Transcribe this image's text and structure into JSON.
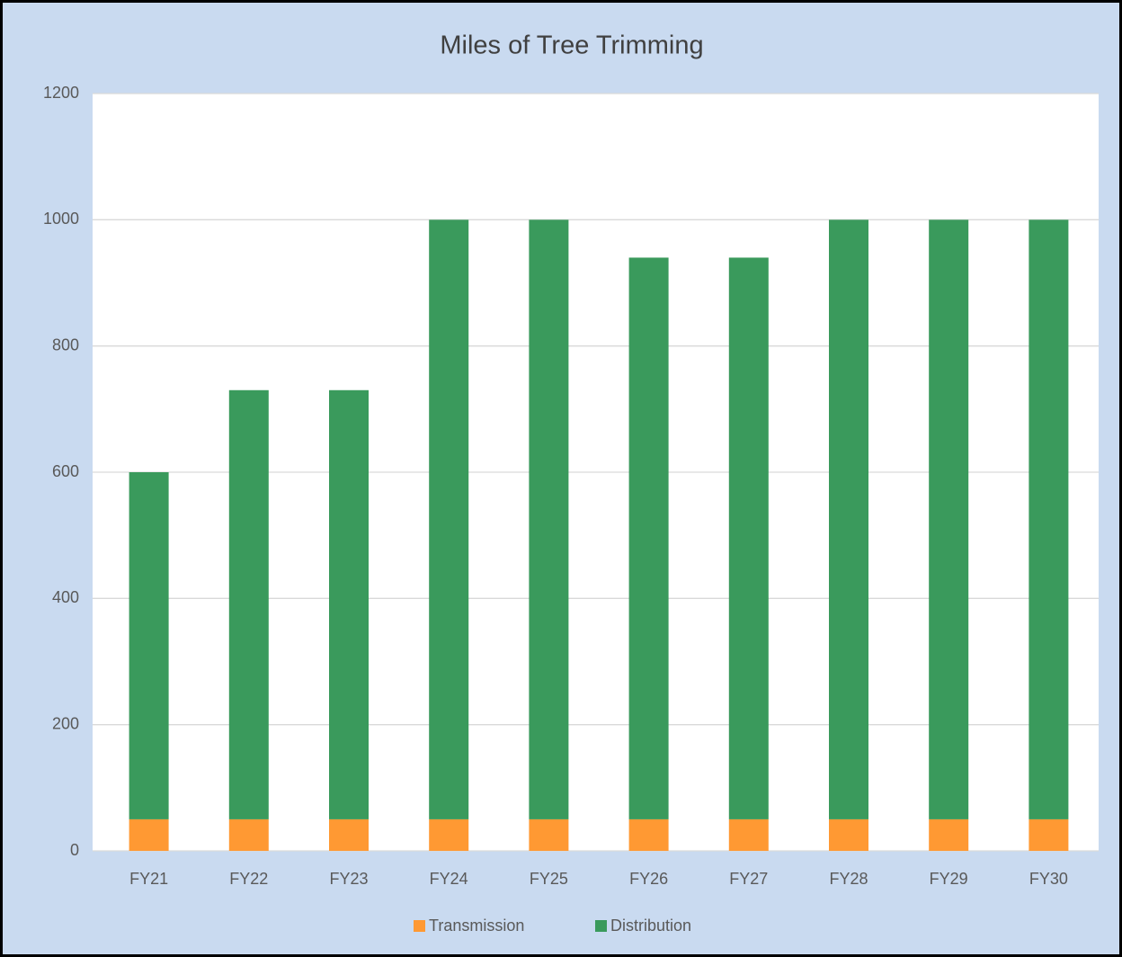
{
  "chart_data": {
    "type": "stacked_bar",
    "title": "Miles of Tree Trimming",
    "categories": [
      "FY21",
      "FY22",
      "FY23",
      "FY24",
      "FY25",
      "FY26",
      "FY27",
      "FY28",
      "FY29",
      "FY30"
    ],
    "series": [
      {
        "name": "Transmission",
        "color": "#ff9933",
        "values": [
          50,
          50,
          50,
          50,
          50,
          50,
          50,
          50,
          50,
          50
        ]
      },
      {
        "name": "Distribution",
        "color": "#3a9a5c",
        "values": [
          550,
          680,
          680,
          950,
          950,
          890,
          890,
          950,
          950,
          950
        ]
      }
    ],
    "ylim": [
      0,
      1200
    ],
    "yticks": [
      0,
      200,
      400,
      600,
      800,
      1000,
      1200
    ],
    "grid": true,
    "legend": "bottom"
  }
}
